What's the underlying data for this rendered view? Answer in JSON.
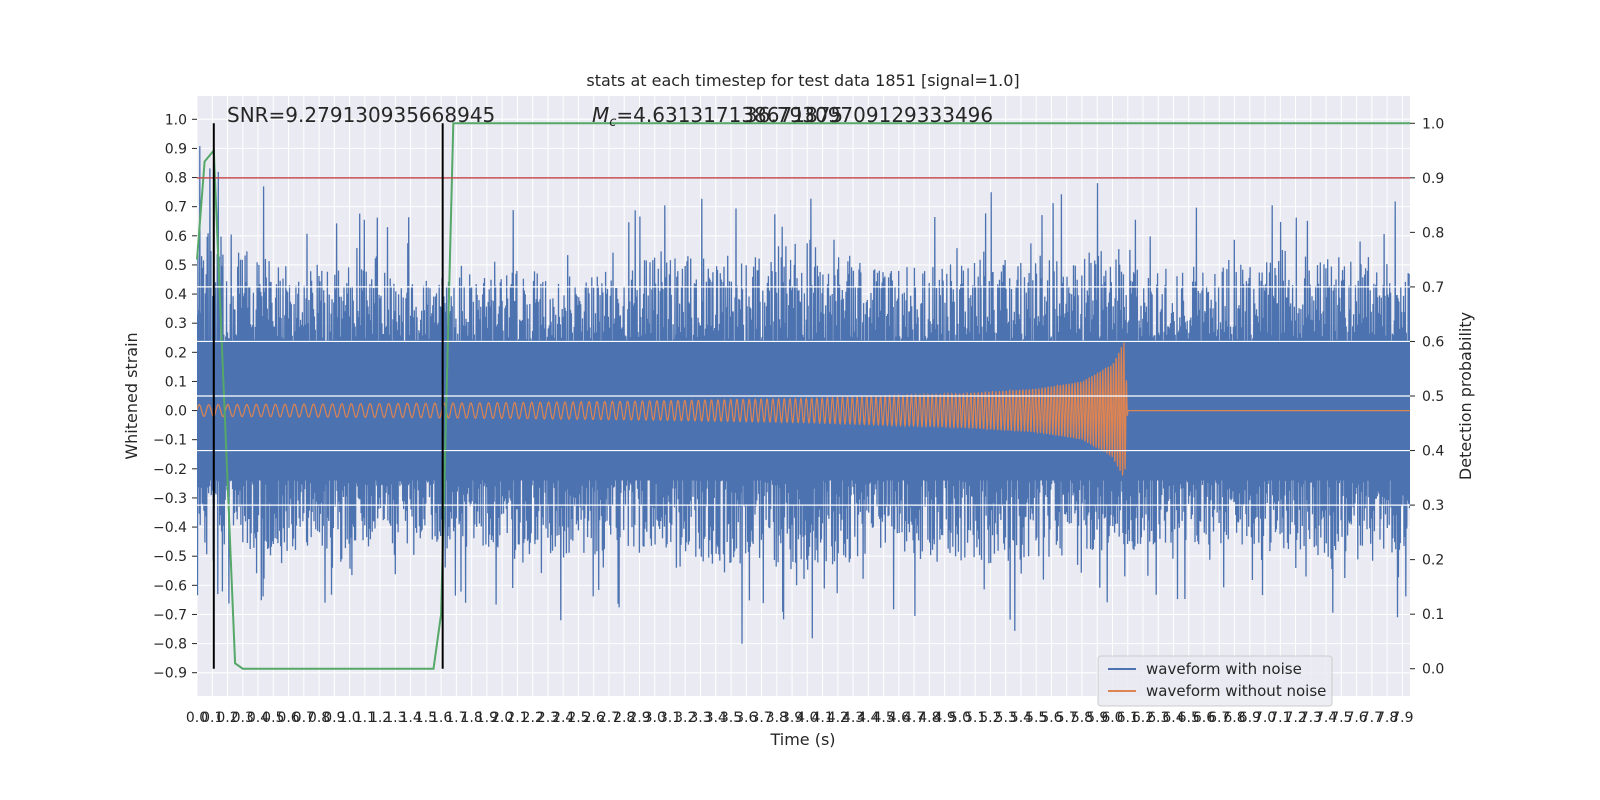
{
  "chart_data": {
    "type": "line",
    "title": "stats at each timestep for test data 1851 [signal=1.0]",
    "xlabel": "Time (s)",
    "ylabel": "Whitened strain",
    "y2label": "Detection probability",
    "xlim": [
      0.0,
      7.95
    ],
    "ylim": [
      -0.98,
      1.08
    ],
    "y2lim": [
      -0.05,
      1.05
    ],
    "x_ticks": [
      0.0,
      0.1,
      0.2,
      0.3,
      0.4,
      0.5,
      0.6,
      0.7,
      0.8,
      0.9,
      1.0,
      1.1,
      1.2,
      1.3,
      1.4,
      1.5,
      1.6,
      1.7,
      1.8,
      1.9,
      2.0,
      2.1,
      2.2,
      2.3,
      2.4,
      2.5,
      2.6,
      2.7,
      2.8,
      2.9,
      3.0,
      3.1,
      3.2,
      3.3,
      3.4,
      3.5,
      3.6,
      3.7,
      3.8,
      3.9,
      4.0,
      4.1,
      4.2,
      4.3,
      4.4,
      4.5,
      4.6,
      4.7,
      4.8,
      4.9,
      5.0,
      5.1,
      5.2,
      5.3,
      5.4,
      5.5,
      5.6,
      5.7,
      5.8,
      5.9,
      6.0,
      6.1,
      6.2,
      6.3,
      6.4,
      6.5,
      6.6,
      6.7,
      6.8,
      6.9,
      7.0,
      7.1,
      7.2,
      7.3,
      7.4,
      7.5,
      7.6,
      7.7,
      7.8,
      7.9
    ],
    "y_ticks": [
      -0.9,
      -0.8,
      -0.7,
      -0.6,
      -0.5,
      -0.4,
      -0.3,
      -0.2,
      -0.1,
      0.0,
      0.1,
      0.2,
      0.3,
      0.4,
      0.5,
      0.6,
      0.7,
      0.8,
      0.9,
      1.0
    ],
    "y2_ticks": [
      0.0,
      0.1,
      0.2,
      0.3,
      0.4,
      0.5,
      0.6,
      0.7,
      0.8,
      0.9,
      1.0
    ],
    "annotations": {
      "snr": "SNR=9.279130935668945",
      "mc_prefix": "M",
      "mc_sub": "c",
      "mc_value": "=4.631317138671875",
      "overlap": "36.79309709129333496"
    },
    "threshold": {
      "y2": 0.9,
      "color": "#c44e52"
    },
    "vertical_lines": {
      "x": [
        0.11,
        1.61
      ],
      "color": "#000000"
    },
    "noise_envelope": {
      "x": [
        0.0,
        0.5,
        1.0,
        1.5,
        2.0,
        2.5,
        3.0,
        3.5,
        4.0,
        4.5,
        5.0,
        5.5,
        6.0,
        6.5,
        7.0,
        7.5,
        7.95
      ],
      "upper": [
        0.98,
        0.75,
        0.72,
        0.65,
        0.72,
        0.65,
        0.78,
        0.8,
        0.9,
        0.7,
        0.78,
        0.75,
        0.85,
        0.7,
        0.75,
        0.82,
        0.72
      ],
      "lower": [
        -0.65,
        -0.7,
        -0.68,
        -0.65,
        -0.7,
        -0.75,
        -0.7,
        -0.8,
        -0.85,
        -0.7,
        -0.8,
        -0.75,
        -0.7,
        -0.65,
        -0.7,
        -0.78,
        -0.7
      ],
      "spike_rate_per_s": 110
    },
    "clean_waveform": {
      "x": [
        0.0,
        1.0,
        2.0,
        3.0,
        4.0,
        5.0,
        5.5,
        5.8,
        6.0,
        6.08,
        6.1,
        7.95
      ],
      "amplitude": [
        0.02,
        0.023,
        0.027,
        0.033,
        0.042,
        0.058,
        0.075,
        0.1,
        0.16,
        0.24,
        0.0,
        0.0
      ],
      "freq_start_hz": 16,
      "freq_end_hz": 60
    },
    "detection_probability": {
      "x": [
        0.0,
        0.05,
        0.11,
        0.25,
        0.3,
        0.5,
        1.0,
        1.55,
        1.6,
        1.68,
        7.95
      ],
      "y": [
        0.75,
        0.93,
        0.95,
        0.01,
        0.0,
        0.0,
        0.0,
        0.0,
        0.1,
        1.0,
        1.0
      ]
    },
    "series": [
      {
        "name": "waveform with noise",
        "color": "#4c72b0"
      },
      {
        "name": "waveform without noise",
        "color": "#dd8452"
      },
      {
        "name": "",
        "color": "#55a868"
      }
    ],
    "legend_position": "lower-right",
    "grid": true,
    "background_color": "#eaeaf2"
  }
}
